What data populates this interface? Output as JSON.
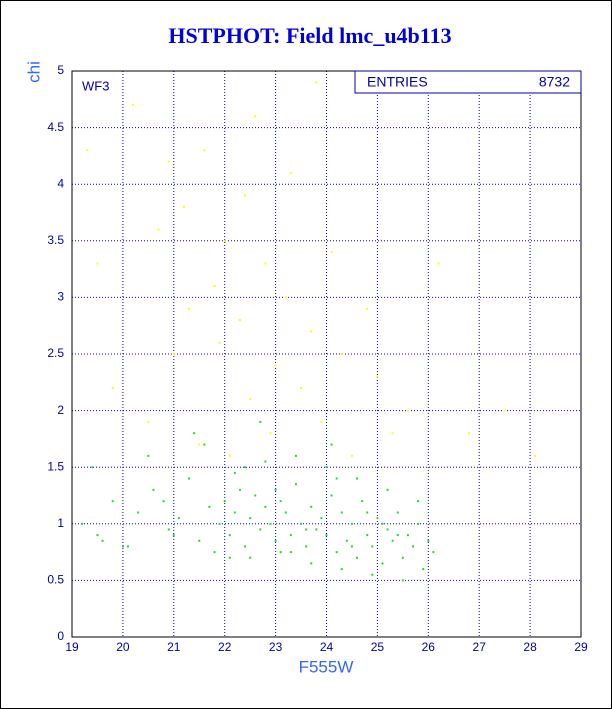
{
  "chart_data": {
    "type": "scatter",
    "title": "HSTPHOT: Field lmc_u4b113",
    "x_label": "F555W",
    "y_label": "chi",
    "panel_label": "WF3",
    "stats": {
      "label": "ENTRIES",
      "value": 8732
    },
    "xlim": [
      19,
      29
    ],
    "ylim": [
      0,
      5
    ],
    "xticks": [
      19,
      20,
      21,
      22,
      23,
      24,
      25,
      26,
      27,
      28,
      29
    ],
    "yticks": [
      0,
      0.5,
      1,
      1.5,
      2,
      2.5,
      3,
      3.5,
      4,
      4.5,
      5
    ],
    "grid": true,
    "series": [
      {
        "color": "#22dd22",
        "x": [
          19.2,
          19.5,
          19.8,
          20.1,
          20.3,
          20.6,
          20.9,
          21.1,
          21.3,
          21.5,
          21.7,
          21.9,
          22.0,
          22.1,
          22.2,
          22.3,
          22.4,
          22.5,
          22.6,
          22.7,
          22.8,
          22.9,
          23.0,
          23.1,
          23.2,
          23.3,
          23.4,
          23.5,
          23.6,
          23.7,
          23.8,
          23.9,
          24.0,
          24.1,
          24.2,
          24.3,
          24.4,
          24.5,
          24.6,
          24.7,
          24.8,
          24.9,
          25.0,
          25.1,
          25.2,
          25.3,
          25.4,
          25.5,
          25.6,
          25.7,
          25.8,
          25.9,
          26.0,
          26.1,
          19.4,
          20.0,
          20.5,
          21.0,
          21.6,
          22.2,
          22.5,
          22.8,
          23.1,
          23.4,
          23.7,
          24.0,
          24.3,
          24.6,
          24.9,
          25.2,
          25.5,
          25.8,
          19.6,
          20.8,
          21.8,
          22.4,
          23.0,
          23.6,
          24.2,
          24.8,
          25.4,
          22.1,
          23.3,
          24.5,
          25.1,
          21.4,
          22.7,
          24.1
        ],
        "y": [
          1.0,
          0.9,
          1.2,
          0.8,
          1.1,
          1.3,
          0.95,
          1.05,
          1.4,
          0.85,
          1.15,
          1.0,
          1.2,
          0.9,
          1.1,
          1.3,
          0.8,
          1.05,
          1.25,
          0.95,
          1.15,
          1.0,
          0.85,
          1.2,
          1.1,
          0.9,
          1.35,
          1.0,
          0.8,
          1.15,
          0.95,
          1.05,
          0.9,
          1.25,
          0.75,
          1.1,
          0.85,
          1.0,
          0.7,
          1.2,
          0.9,
          0.8,
          1.05,
          0.65,
          0.95,
          0.85,
          1.1,
          0.7,
          0.9,
          0.8,
          1.0,
          0.6,
          0.85,
          0.75,
          1.5,
          0.8,
          1.6,
          0.9,
          1.7,
          1.45,
          0.7,
          1.55,
          0.75,
          1.6,
          0.65,
          1.5,
          0.6,
          1.4,
          0.55,
          1.3,
          0.5,
          1.2,
          0.85,
          1.2,
          0.75,
          1.5,
          1.3,
          0.95,
          1.4,
          1.1,
          0.9,
          0.7,
          0.75,
          0.8,
          1.0,
          1.8,
          1.9,
          1.7
        ]
      },
      {
        "color": "#ffff00",
        "x": [
          19.3,
          19.5,
          19.8,
          20.2,
          20.5,
          20.7,
          20.9,
          21.0,
          21.2,
          21.3,
          21.5,
          21.6,
          21.8,
          21.9,
          22.0,
          22.1,
          22.3,
          22.4,
          22.5,
          22.6,
          22.8,
          22.9,
          23.0,
          23.2,
          23.3,
          23.5,
          23.7,
          23.9,
          24.1,
          24.3,
          24.5,
          24.8,
          25.0,
          25.3,
          25.6,
          26.2,
          26.8,
          27.5,
          28.1,
          23.8
        ],
        "y": [
          4.3,
          3.3,
          2.2,
          4.7,
          1.9,
          3.6,
          4.2,
          2.5,
          3.8,
          2.9,
          1.7,
          4.3,
          3.1,
          2.6,
          3.5,
          1.6,
          2.8,
          3.9,
          2.1,
          4.6,
          3.3,
          1.8,
          2.4,
          3.0,
          4.1,
          2.2,
          2.7,
          1.9,
          3.4,
          2.5,
          1.6,
          2.9,
          2.3,
          1.8,
          2.0,
          3.3,
          1.8,
          2.0,
          1.6,
          4.9
        ]
      }
    ]
  }
}
